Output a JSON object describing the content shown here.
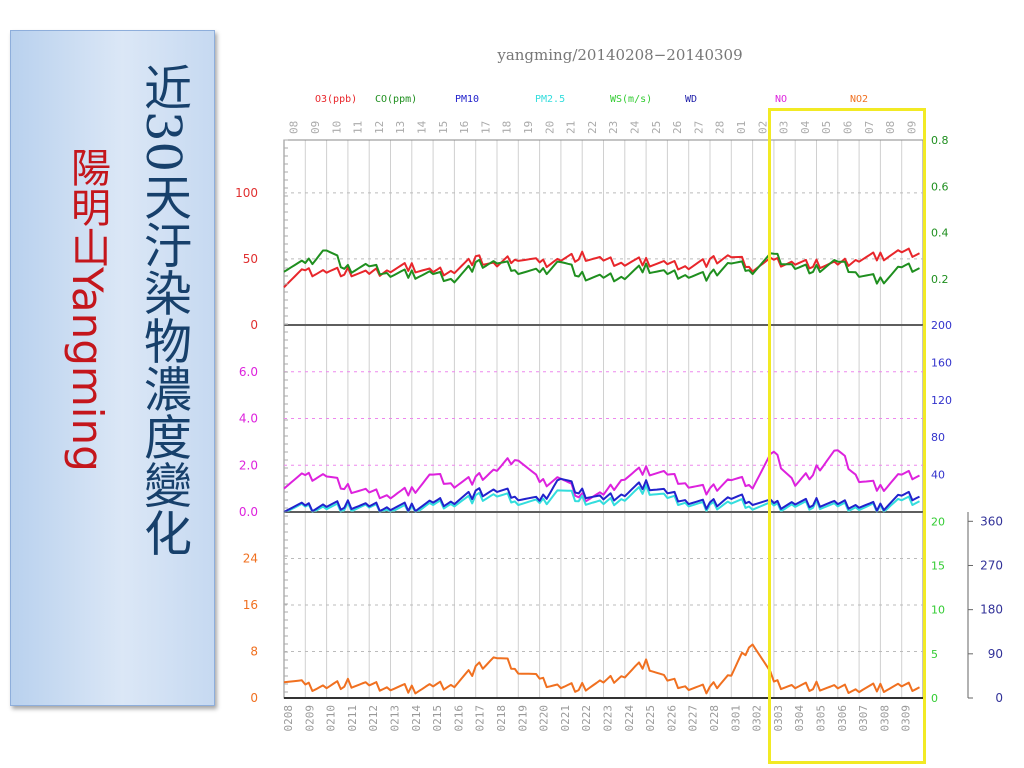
{
  "sidebar": {
    "title_cn": "近30天汙染物濃度變化",
    "station_cn": "陽明山",
    "station_en": "Yangming",
    "bg_color": "#c6d9f1",
    "title_color": "#17406b",
    "station_color": "#c4161c"
  },
  "highlight_color": "#f2ea24",
  "chart_data": {
    "type": "line",
    "title": "yangming/20140208−20140309",
    "legend": [
      {
        "label": "O3(ppb)",
        "color": "#e8262b"
      },
      {
        "label": "CO(ppm)",
        "color": "#1f8f1f"
      },
      {
        "label": "PM10",
        "color": "#2222cc"
      },
      {
        "label": "PM2.5",
        "color": "#33dddd"
      },
      {
        "label": "WS(m/s)",
        "color": "#33cc33"
      },
      {
        "label": "WD",
        "color": "#2222aa"
      },
      {
        "label": "NO",
        "color": "#dd22dd"
      },
      {
        "label": "NO2",
        "color": "#f07020"
      }
    ],
    "top_ticks": [
      "08",
      "09",
      "10",
      "11",
      "12",
      "13",
      "14",
      "15",
      "16",
      "17",
      "18",
      "19",
      "20",
      "21",
      "22",
      "23",
      "24",
      "25",
      "26",
      "27",
      "28",
      "01",
      "02",
      "03",
      "04",
      "05",
      "06",
      "07",
      "08",
      "09"
    ],
    "bottom_ticks": [
      "0208",
      "0209",
      "0210",
      "0211",
      "0212",
      "0213",
      "0214",
      "0215",
      "0216",
      "0217",
      "0218",
      "0219",
      "0220",
      "0221",
      "0222",
      "0223",
      "0224",
      "0225",
      "0226",
      "0227",
      "0228",
      "0301",
      "0302",
      "0303",
      "0304",
      "0305",
      "0306",
      "0307",
      "0308",
      "0309"
    ],
    "panels": [
      {
        "left_ticks": [
          "0",
          "50",
          "100"
        ],
        "left_color": "#e03030",
        "right_ticks": [
          "0.2",
          "0.4",
          "0.6",
          "0.8"
        ],
        "right_color": "#1f8f1f",
        "ylim": [
          0,
          140
        ],
        "series": [
          {
            "key": "O3",
            "color": "#e8262b",
            "values": [
              32,
              40,
              41,
              40,
              38,
              42,
              44,
              40,
              42,
              50,
              45,
              52,
              46,
              50,
              52,
              48,
              47,
              48,
              46,
              45,
              48,
              52,
              44,
              48,
              47,
              46,
              45,
              50,
              52,
              55
            ]
          },
          {
            "key": "CO",
            "values": [
              0.25,
              0.26,
              0.33,
              0.24,
              0.25,
              0.22,
              0.22,
              0.22,
              0.2,
              0.26,
              0.27,
              0.24,
              0.22,
              0.28,
              0.21,
              0.2,
              0.21,
              0.25,
              0.22,
              0.22,
              0.21,
              0.27,
              0.24,
              0.3,
              0.25,
              0.24,
              0.27,
              0.22,
              0.19,
              0.25
            ],
            "ylim": [
              0,
              0.8
            ],
            "color": "#1f8f1f"
          }
        ]
      },
      {
        "left_ticks": [
          "0.0",
          "2.0",
          "4.0",
          "6.0"
        ],
        "left_color": "#dd22dd",
        "right_ticks": [
          "40",
          "80",
          "120",
          "160",
          "200"
        ],
        "right_color": "#3333cc",
        "ylim": [
          0,
          8
        ],
        "series": [
          {
            "key": "NO",
            "color": "#dd22dd",
            "values": [
              1.2,
              1.5,
              1.6,
              1.0,
              0.8,
              0.7,
              0.9,
              1.6,
              1.2,
              1.4,
              1.8,
              2.4,
              1.2,
              1.5,
              0.6,
              0.7,
              1.5,
              1.8,
              1.6,
              1.2,
              0.9,
              1.4,
              1.2,
              2.5,
              1.2,
              1.8,
              2.6,
              1.4,
              1.0,
              1.6
            ]
          },
          {
            "key": "PM2.5",
            "color": "#33dddd",
            "values": [
              0.15,
              0.15,
              0.2,
              0.2,
              0.15,
              0.1,
              0.1,
              0.3,
              0.4,
              0.6,
              0.7,
              0.5,
              0.3,
              1.0,
              0.5,
              0.3,
              0.6,
              1.0,
              0.6,
              0.4,
              0.2,
              0.4,
              0.3,
              0.2,
              0.3,
              0.3,
              0.2,
              0.2,
              0.15,
              0.5
            ]
          },
          {
            "key": "PM10",
            "color": "#2222cc",
            "values": [
              0.2,
              0.2,
              0.3,
              0.3,
              0.2,
              0.2,
              0.2,
              0.4,
              0.5,
              0.8,
              0.9,
              0.7,
              0.4,
              1.5,
              0.8,
              0.5,
              0.8,
              1.2,
              0.8,
              0.5,
              0.3,
              0.6,
              0.5,
              0.3,
              0.4,
              0.4,
              0.3,
              0.3,
              0.2,
              0.7
            ]
          }
        ]
      },
      {
        "left_ticks": [
          "0",
          "8",
          "16",
          "24"
        ],
        "left_color": "#f07020",
        "right_ticks": [
          "0",
          "5",
          "10",
          "15",
          "20"
        ],
        "right_color": "#33cc33",
        "right2_ticks": [
          "0",
          "90",
          "180",
          "270",
          "360"
        ],
        "right2_color": "#333399",
        "ylim": [
          0,
          32
        ],
        "series": [
          {
            "key": "NO2",
            "color": "#f07020",
            "values": [
              3.5,
              2,
              2,
              2.5,
              2,
              1.8,
              1.5,
              2,
              2.5,
              5,
              7,
              5,
              3,
              2,
              1.8,
              2.5,
              4,
              6,
              3,
              2,
              1.5,
              4,
              10,
              2.5,
              2,
              2,
              1.5,
              1.5,
              1.8,
              2
            ]
          }
        ]
      }
    ]
  }
}
